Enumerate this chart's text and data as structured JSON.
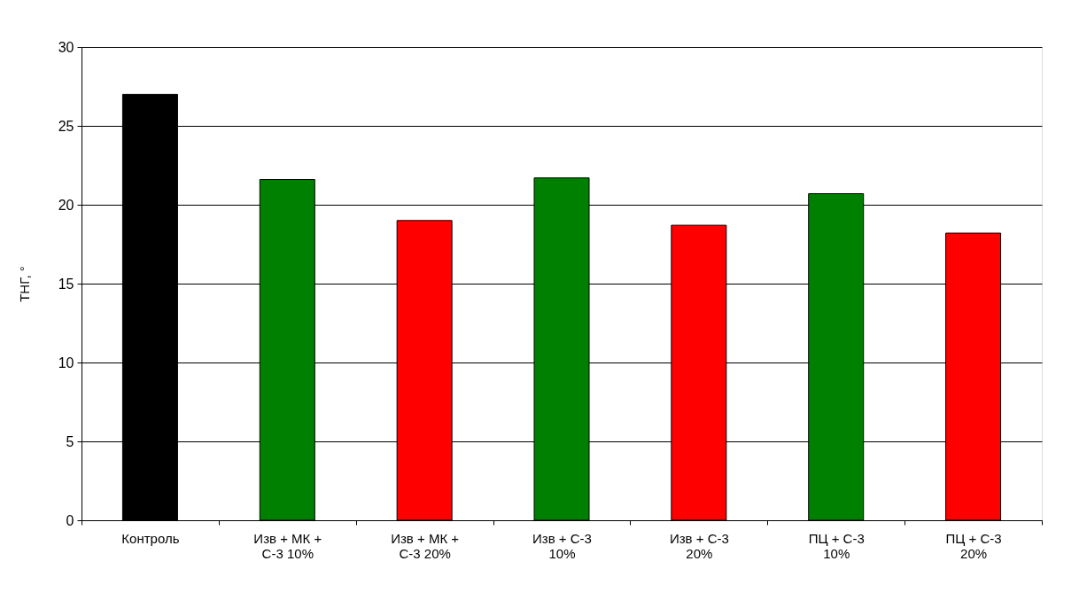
{
  "chart_data": {
    "type": "bar",
    "ylabel": "ТНГ, °",
    "categories": [
      "Контроль",
      "Изв + МК + С-3 10%",
      "Изв + МК + С-3 20%",
      "Изв + С-3 10%",
      "Изв + С-3 20%",
      "ПЦ + С-3 10%",
      "ПЦ + С-3 20%"
    ],
    "values": [
      27.0,
      21.6,
      19.0,
      21.7,
      18.7,
      20.7,
      18.2
    ],
    "colors": [
      "#000000",
      "#008000",
      "#ff0000",
      "#008000",
      "#ff0000",
      "#008000",
      "#ff0000"
    ],
    "ylim": [
      0,
      30
    ],
    "yticks": [
      0,
      5,
      10,
      15,
      20,
      25,
      30
    ],
    "grid": "y"
  }
}
